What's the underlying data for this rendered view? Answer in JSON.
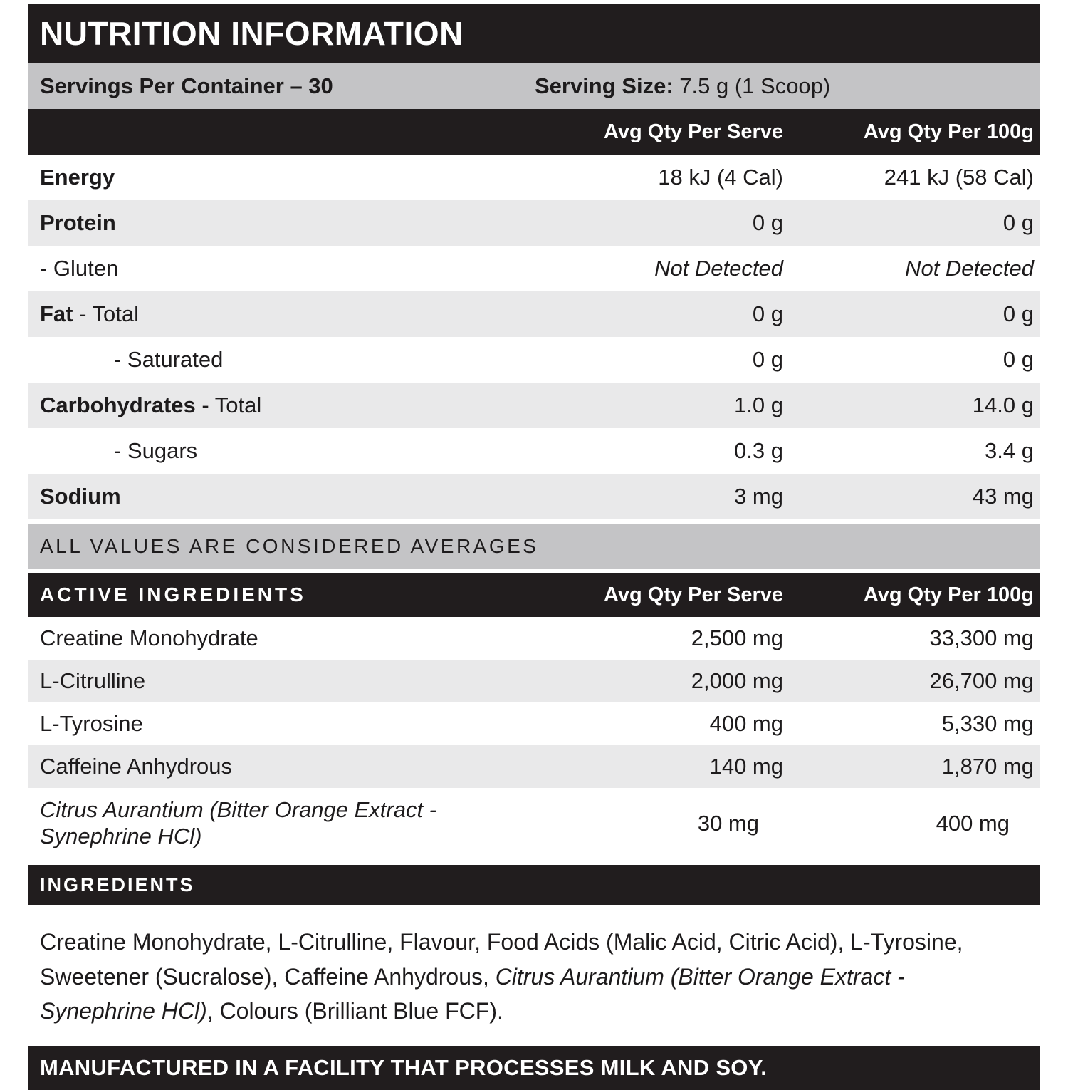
{
  "header": {
    "title": "NUTRITION INFORMATION"
  },
  "serving": {
    "servings_label": "Servings Per Container – 30",
    "size_label": "Serving Size:",
    "size_value": "7.5 g (1 Scoop)"
  },
  "columns": {
    "serve": "Avg Qty Per Serve",
    "per100g": "Avg Qty Per 100g"
  },
  "nutrition_rows": [
    {
      "label_bold": "Energy",
      "label_rest": "",
      "serve": "18 kJ (4 Cal)",
      "per100g": "241 kJ (58 Cal)"
    },
    {
      "label_bold": "Protein",
      "label_rest": "",
      "serve": "0 g",
      "per100g": "0 g"
    },
    {
      "label_bold": "",
      "label_rest": "- Gluten",
      "serve": "Not Detected",
      "per100g": "Not Detected"
    },
    {
      "label_bold": "Fat",
      "label_rest": " - Total",
      "serve": "0 g",
      "per100g": "0 g"
    },
    {
      "label_bold": "",
      "label_rest": "- Saturated",
      "serve": "0 g",
      "per100g": "0 g"
    },
    {
      "label_bold": "Carbohydrates",
      "label_rest": " - Total",
      "serve": "1.0 g",
      "per100g": "14.0 g"
    },
    {
      "label_bold": "",
      "label_rest": "- Sugars",
      "serve": "0.3 g",
      "per100g": "3.4 g"
    },
    {
      "label_bold": "Sodium",
      "label_rest": "",
      "serve": "3 mg",
      "per100g": "43 mg"
    }
  ],
  "averages_note": "ALL VALUES ARE CONSIDERED AVERAGES",
  "active": {
    "header": "ACTIVE INGREDIENTS",
    "rows": [
      {
        "label": "Creatine Monohydrate",
        "serve": "2,500 mg",
        "per100g": "33,300 mg"
      },
      {
        "label": "L-Citrulline",
        "serve": "2,000 mg",
        "per100g": "26,700 mg"
      },
      {
        "label": "L-Tyrosine",
        "serve": "400 mg",
        "per100g": "5,330 mg"
      },
      {
        "label": "Caffeine Anhydrous",
        "serve": "140 mg",
        "per100g": "1,870 mg"
      },
      {
        "label": "Citrus Aurantium (Bitter Orange Extract - Synephrine HCl)",
        "serve": "30 mg",
        "per100g": "400 mg"
      }
    ]
  },
  "ingredients": {
    "header": "INGREDIENTS",
    "part1": "Creatine Monohydrate, L-Citrulline, Flavour, Food Acids (Malic Acid, Citric Acid), L-Tyrosine, Sweetener (Sucralose), Caffeine Anhydrous, ",
    "italic": "Citrus Aurantium (Bitter Orange Extract - Synephrine HCl)",
    "part2": ", Colours (Brilliant Blue FCF)."
  },
  "footer": {
    "manufactured": "MANUFACTURED IN A FACILITY THAT PROCESSES MILK AND SOY."
  },
  "colors": {
    "black_band": "#211d1e",
    "medium_gray": "#c4c4c6",
    "stripe_gray": "#e9e9ea",
    "text": "#1d1b1c"
  }
}
